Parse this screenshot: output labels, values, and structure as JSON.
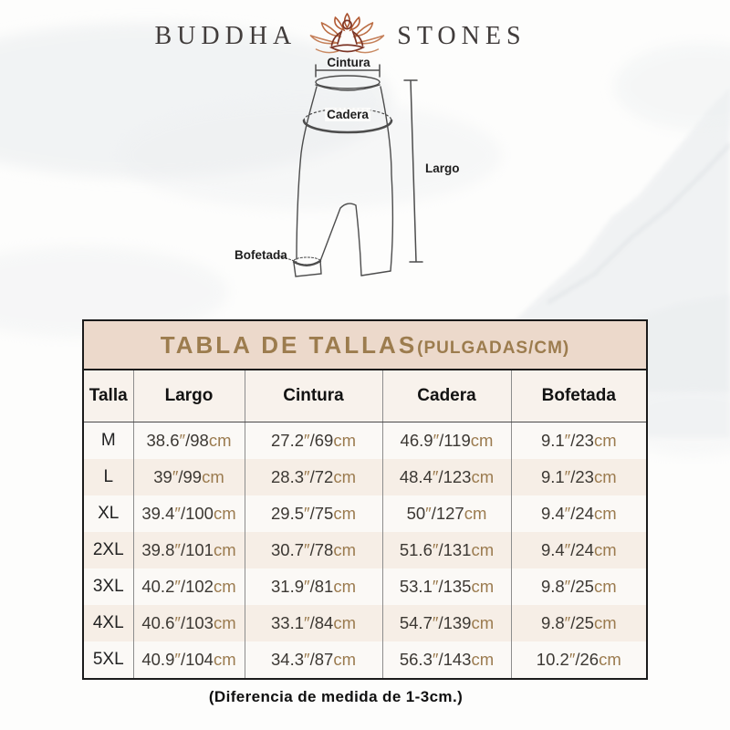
{
  "brand": {
    "left": "BUDDHA",
    "right": "STONES"
  },
  "diagram": {
    "labels": {
      "cintura": "Cintura",
      "cadera": "Cadera",
      "largo": "Largo",
      "bofetada": "Bofetada"
    }
  },
  "table": {
    "title": "TABLA DE TALLAS",
    "title_suffix": "(PULGADAS/CM)",
    "columns": [
      "Talla",
      "Largo",
      "Cintura",
      "Cadera",
      "Bofetada"
    ],
    "units": {
      "inch_mark": "″",
      "separator": "/",
      "cm_label": "cm"
    },
    "rows": [
      {
        "talla": "M",
        "largo": {
          "in": "38.6",
          "cm": "98"
        },
        "cintura": {
          "in": "27.2",
          "cm": "69"
        },
        "cadera": {
          "in": "46.9",
          "cm": "119"
        },
        "bofetada": {
          "in": "9.1",
          "cm": "23"
        }
      },
      {
        "talla": "L",
        "largo": {
          "in": "39",
          "cm": "99"
        },
        "cintura": {
          "in": "28.3",
          "cm": "72"
        },
        "cadera": {
          "in": "48.4",
          "cm": "123"
        },
        "bofetada": {
          "in": "9.1",
          "cm": "23"
        }
      },
      {
        "talla": "XL",
        "largo": {
          "in": "39.4",
          "cm": "100"
        },
        "cintura": {
          "in": "29.5",
          "cm": "75"
        },
        "cadera": {
          "in": "50",
          "cm": "127"
        },
        "bofetada": {
          "in": "9.4",
          "cm": "24"
        }
      },
      {
        "talla": "2XL",
        "largo": {
          "in": "39.8",
          "cm": "101"
        },
        "cintura": {
          "in": "30.7",
          "cm": "78"
        },
        "cadera": {
          "in": "51.6",
          "cm": "131"
        },
        "bofetada": {
          "in": "9.4",
          "cm": "24"
        }
      },
      {
        "talla": "3XL",
        "largo": {
          "in": "40.2",
          "cm": "102"
        },
        "cintura": {
          "in": "31.9",
          "cm": "81"
        },
        "cadera": {
          "in": "53.1",
          "cm": "135"
        },
        "bofetada": {
          "in": "9.8",
          "cm": "25"
        }
      },
      {
        "talla": "4XL",
        "largo": {
          "in": "40.6",
          "cm": "103"
        },
        "cintura": {
          "in": "33.1",
          "cm": "84"
        },
        "cadera": {
          "in": "54.7",
          "cm": "139"
        },
        "bofetada": {
          "in": "9.8",
          "cm": "25"
        }
      },
      {
        "talla": "5XL",
        "largo": {
          "in": "40.9",
          "cm": "104"
        },
        "cintura": {
          "in": "34.3",
          "cm": "87"
        },
        "cadera": {
          "in": "56.3",
          "cm": "143"
        },
        "bofetada": {
          "in": "10.2",
          "cm": "26"
        }
      }
    ]
  },
  "chart_data": {
    "type": "table",
    "title": "TABLA DE TALLAS(PULGADAS/CM)",
    "columns": [
      "Talla",
      "Largo",
      "Cintura",
      "Cadera",
      "Bofetada"
    ],
    "rows": [
      [
        "M",
        "38.6″/98cm",
        "27.2″/69cm",
        "46.9″/119cm",
        "9.1″/23cm"
      ],
      [
        "L",
        "39″/99cm",
        "28.3″/72cm",
        "48.4″/123cm",
        "9.1″/23cm"
      ],
      [
        "XL",
        "39.4″/100cm",
        "29.5″/75cm",
        "50″/127cm",
        "9.4″/24cm"
      ],
      [
        "2XL",
        "39.8″/101cm",
        "30.7″/78cm",
        "51.6″/131cm",
        "9.4″/24cm"
      ],
      [
        "3XL",
        "40.2″/102cm",
        "31.9″/81cm",
        "53.1″/135cm",
        "9.8″/25cm"
      ],
      [
        "4XL",
        "40.6″/103cm",
        "33.1″/84cm",
        "54.7″/139cm",
        "9.8″/25cm"
      ],
      [
        "5XL",
        "40.9″/104cm",
        "34.3″/87cm",
        "56.3″/143cm",
        "10.2″/26cm"
      ]
    ],
    "annotations": [
      "Cintura",
      "Cadera",
      "Largo",
      "Bofetada"
    ],
    "footnote": "(Diferencia de medida de 1-3cm.)"
  },
  "footer": {
    "note": "(Diferencia de medida de 1-3cm.)"
  },
  "colors": {
    "accent_gold": "#9c7c4e",
    "band_bg": "#ecd9cb",
    "row_tint": "#f6eee6",
    "unit_tan": "#9b7b4f",
    "maroon": "#7c3526",
    "drawing_stroke": "#4d4d4d"
  }
}
